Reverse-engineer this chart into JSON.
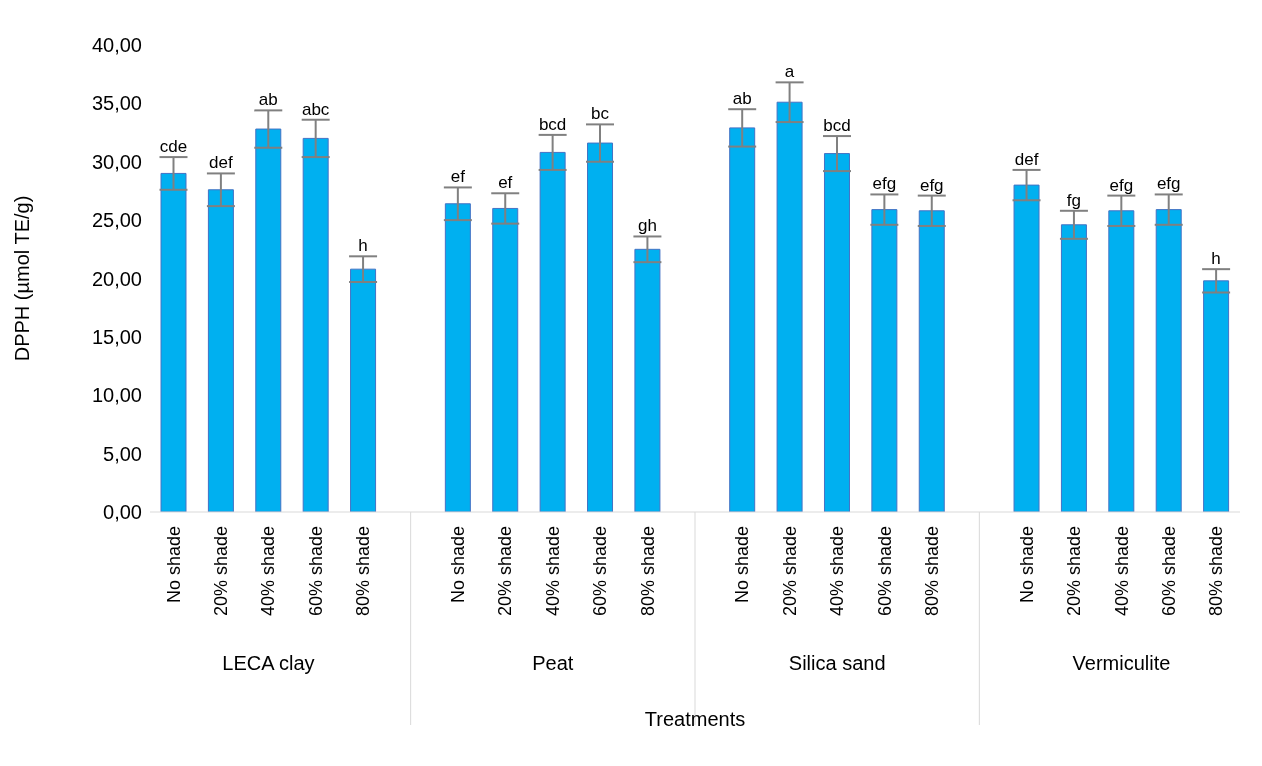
{
  "chart_data": {
    "type": "bar",
    "xlabel": "Treatments",
    "ylabel": "DPPH (µmol  TE/g)",
    "categories": [
      "No shade",
      "20% shade",
      "40% shade",
      "60% shade",
      "80% shade",
      null,
      "No shade",
      "20% shade",
      "40% shade",
      "60% shade",
      "80% shade",
      null,
      "No shade",
      "20% shade",
      "40% shade",
      "60% shade",
      "80% shade",
      null,
      "No shade",
      "20% shade",
      "40% shade",
      "60% shade",
      "80% shade"
    ],
    "values": [
      29.0,
      27.6,
      32.8,
      32.0,
      20.8,
      null,
      26.4,
      26.0,
      30.8,
      31.6,
      22.5,
      null,
      32.9,
      35.1,
      30.7,
      25.9,
      25.8,
      null,
      28.0,
      24.6,
      25.8,
      25.9,
      19.8
    ],
    "errors": [
      1.4,
      1.4,
      1.6,
      1.6,
      1.1,
      null,
      1.4,
      1.3,
      1.5,
      1.6,
      1.1,
      null,
      1.6,
      1.7,
      1.5,
      1.3,
      1.3,
      null,
      1.3,
      1.2,
      1.3,
      1.3,
      1.0
    ],
    "value_labels": [
      "cde",
      "def",
      "ab",
      "abc",
      "h",
      null,
      "ef",
      "ef",
      "bcd",
      "bc",
      "gh",
      null,
      "ab",
      "a",
      "bcd",
      "efg",
      "efg",
      null,
      "def",
      "fg",
      "efg",
      "efg",
      "h"
    ],
    "color": "#00b0f0",
    "annotations": [
      "LECA clay",
      "Peat",
      "Silica sand",
      "Vermiculite"
    ],
    "ylim": [
      0,
      40
    ],
    "yticks": [
      {
        "value": 0,
        "label": "0,00"
      },
      {
        "value": 5,
        "label": "5,00"
      },
      {
        "value": 10,
        "label": "10,00"
      },
      {
        "value": 15,
        "label": "15,00"
      },
      {
        "value": 20,
        "label": "20,00"
      },
      {
        "value": 25,
        "label": "25,00"
      },
      {
        "value": 30,
        "label": "30,00"
      },
      {
        "value": 35,
        "label": "35,00"
      },
      {
        "value": 40,
        "label": "40,00"
      }
    ],
    "grid": false,
    "legend": false
  }
}
